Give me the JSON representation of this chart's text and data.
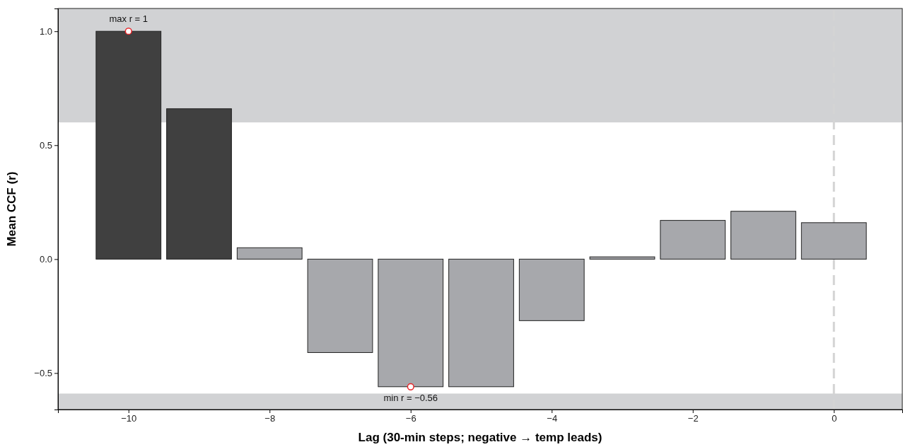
{
  "chart_data": {
    "type": "bar",
    "xlabel": "Lag (30-min steps; negative → temp leads)",
    "ylabel": "Mean CCF (r)",
    "x": [
      -10,
      -9,
      -8,
      -7,
      -6,
      -5,
      -4,
      -3,
      -2,
      -1,
      0
    ],
    "series": [
      {
        "values": [
          1,
          0.66,
          0.05,
          -0.41,
          -0.56,
          -0.56,
          -0.27,
          0.01,
          0.17,
          0.21,
          0.16
        ],
        "colors": [
          "#404040",
          "#404040",
          "#a7a8ac",
          "#a7a8ac",
          "#a7a8ac",
          "#a7a8ac",
          "#a7a8ac",
          "#a7a8ac",
          "#a7a8ac",
          "#a7a8ac",
          "#a7a8ac"
        ]
      },
      {
        "type": "scatter",
        "x": [
          -10,
          -6
        ],
        "values": [
          1,
          -0.56
        ],
        "color": "#e8262a"
      }
    ],
    "xlim": [
      -11,
      0.97
    ],
    "ylim": [
      -0.66,
      1.1
    ],
    "xticks": [
      {
        "value": -10,
        "label": "−10"
      },
      {
        "value": -8,
        "label": "−8"
      },
      {
        "value": -6,
        "label": "−6"
      },
      {
        "value": -4,
        "label": "−4"
      },
      {
        "value": -2,
        "label": "−2"
      },
      {
        "value": 0,
        "label": "0"
      }
    ],
    "yticks": [
      {
        "value": -0.5,
        "label": "−0.5"
      },
      {
        "value": 0,
        "label": "0.0"
      },
      {
        "value": 0.5,
        "label": "0.5"
      },
      {
        "value": 1,
        "label": "1.0"
      }
    ],
    "bands": [
      {
        "axis": "y",
        "from": 0.6,
        "to": 1.1,
        "color": "#d1d2d4"
      },
      {
        "axis": "y",
        "from": -0.66,
        "to": -0.59,
        "color": "#d1d2d4"
      }
    ],
    "ref_lines": [
      {
        "axis": "x",
        "value": 0,
        "color": "#d4d4d4",
        "line_style": "dashed"
      }
    ],
    "annotations": [
      {
        "text": "max r = 1",
        "x": -10,
        "y": 1
      },
      {
        "text": "min r = −0.56",
        "x": -6,
        "y": -0.56
      }
    ],
    "marker": "circle",
    "grid": false
  }
}
